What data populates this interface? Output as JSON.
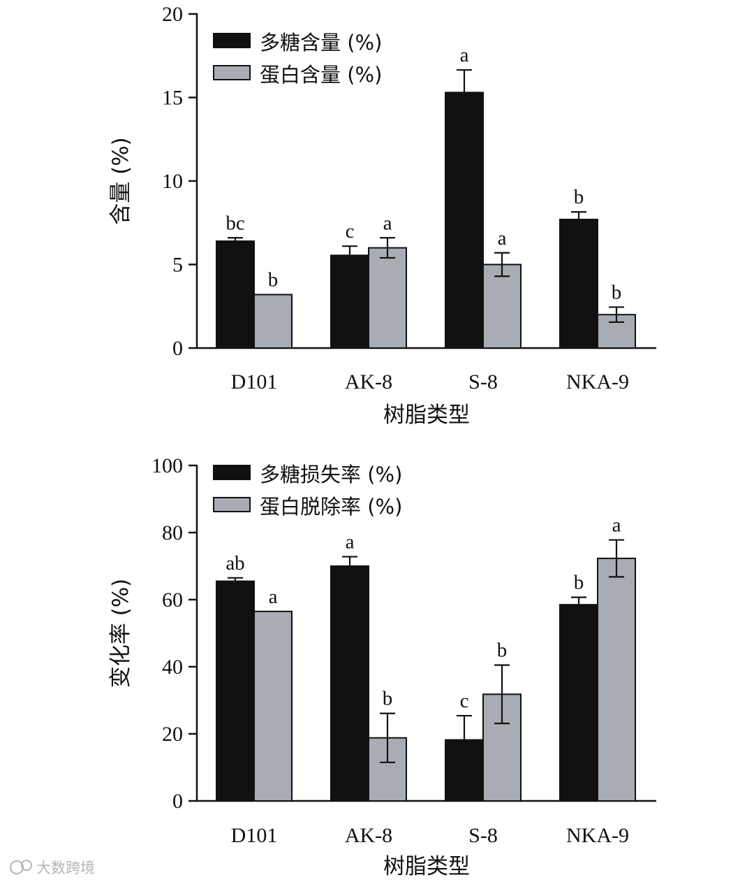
{
  "chart_data": [
    {
      "type": "bar",
      "categories": [
        "D101",
        "AK-8",
        "S-8",
        "NKA-9"
      ],
      "xlabel": "树脂类型",
      "ylabel": "含量 (%)",
      "ylim": [
        0,
        20
      ],
      "yticks": [
        "0",
        "5",
        "10",
        "15",
        "20"
      ],
      "legend_position": "top-left",
      "series": [
        {
          "name": "多糖含量 (%)",
          "color": "#111111",
          "values": [
            6.4,
            5.55,
            15.3,
            7.7
          ],
          "errors": [
            0.2,
            0.55,
            1.35,
            0.45
          ],
          "labels": [
            "bc",
            "c",
            "a",
            "b"
          ]
        },
        {
          "name": "蛋白含量 (%)",
          "color": "#a7adb3",
          "values": [
            3.2,
            6.0,
            5.0,
            2.0
          ],
          "errors": [
            0,
            0.6,
            0.7,
            0.45
          ],
          "labels": [
            "b",
            "a",
            "a",
            "b"
          ]
        }
      ]
    },
    {
      "type": "bar",
      "categories": [
        "D101",
        "AK-8",
        "S-8",
        "NKA-9"
      ],
      "xlabel": "树脂类型",
      "ylabel": "变化率 (%)",
      "ylim": [
        0,
        100
      ],
      "yticks": [
        "0",
        "20",
        "40",
        "60",
        "80",
        "100"
      ],
      "legend_position": "top-left",
      "series": [
        {
          "name": "多糖损失率 (%)",
          "color": "#111111",
          "values": [
            65.5,
            70.0,
            18.2,
            58.5
          ],
          "errors": [
            1.0,
            2.8,
            7.2,
            2.2
          ],
          "labels": [
            "ab",
            "a",
            "c",
            "b"
          ]
        },
        {
          "name": "蛋白脱除率 (%)",
          "color": "#a7adb3",
          "values": [
            56.5,
            18.8,
            31.8,
            72.3
          ],
          "errors": [
            0,
            7.3,
            8.7,
            5.5
          ],
          "labels": [
            "a",
            "b",
            "b",
            "a"
          ]
        }
      ]
    }
  ],
  "watermark": {
    "text": "大数跨境"
  }
}
